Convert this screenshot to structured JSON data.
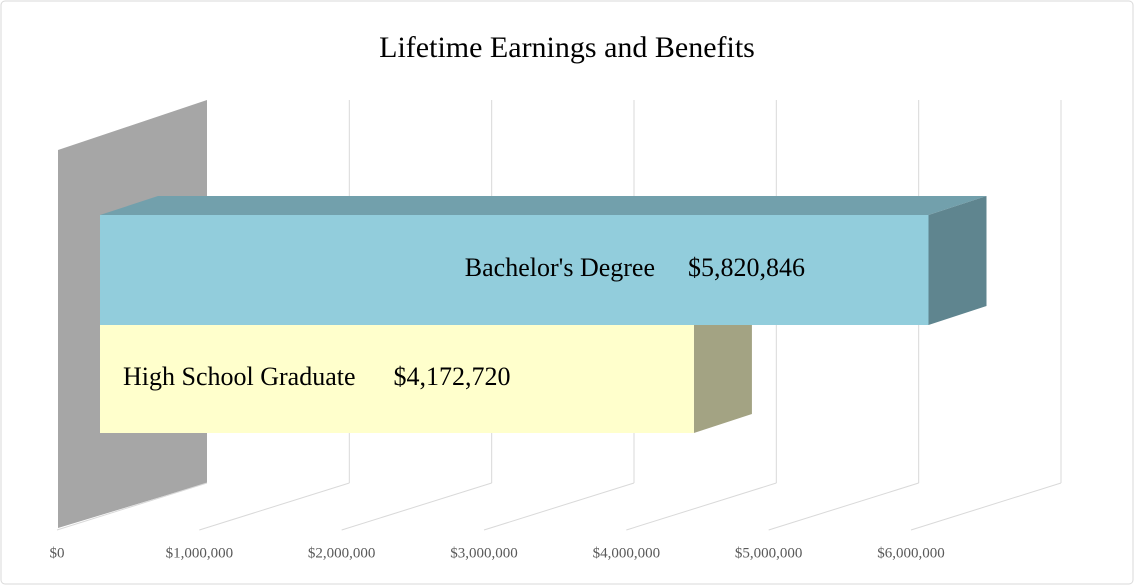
{
  "chart_data": {
    "type": "bar3d",
    "title": "Lifetime Earnings and Benefits",
    "categories": [
      "High School Graduate",
      "Bachelor's Degree"
    ],
    "values": [
      4172720,
      5820846
    ],
    "value_labels": [
      "$4,172,720",
      "$5,820,846"
    ],
    "colors": [
      "#ffffcc",
      "#92cddc"
    ],
    "xlim": [
      0,
      6000000
    ],
    "xticks": [
      {
        "value": 0,
        "label": "$0"
      },
      {
        "value": 1000000,
        "label": "$1,000,000"
      },
      {
        "value": 2000000,
        "label": "$2,000,000"
      },
      {
        "value": 3000000,
        "label": "$3,000,000"
      },
      {
        "value": 4000000,
        "label": "$4,000,000"
      },
      {
        "value": 5000000,
        "label": "$5,000,000"
      },
      {
        "value": 6000000,
        "label": "$6,000,000"
      }
    ],
    "grid": true
  }
}
